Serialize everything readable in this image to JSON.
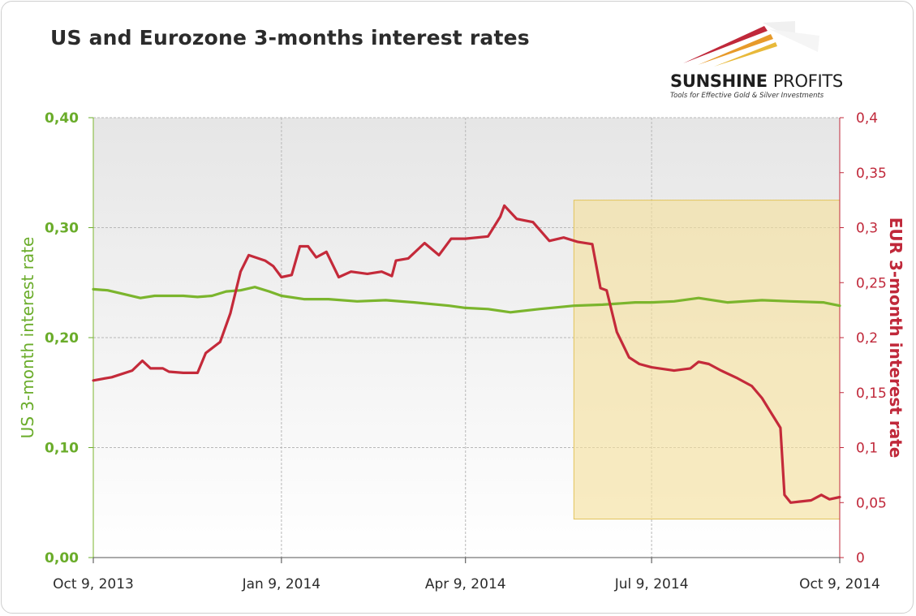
{
  "chart_data": {
    "type": "line",
    "title": "US and Eurozone 3-months interest rates",
    "x_ticks": [
      "Oct 9, 2013",
      "Jan 9, 2014",
      "Apr 9, 2014",
      "Jul 9, 2014",
      "Oct 9, 2014"
    ],
    "x_range": [
      "2013-10-09",
      "2014-10-09"
    ],
    "y_left": {
      "label": "US 3-month interest rate",
      "range": [
        0,
        0.4
      ],
      "ticks": [
        "0,00",
        "0,10",
        "0,20",
        "0,30",
        "0,40"
      ]
    },
    "y_right": {
      "label": "EUR 3-month interest rate",
      "range": [
        0,
        0.4
      ],
      "ticks": [
        "0",
        "0,05",
        "0,1",
        "0,15",
        "0,2",
        "0,25",
        "0,3",
        "0,35",
        "0,4"
      ]
    },
    "grid": true,
    "series": [
      {
        "axis": "left",
        "color": "#7bb52d",
        "points": [
          [
            "2013-10-09",
            0.244
          ],
          [
            "2013-10-16",
            0.243
          ],
          [
            "2013-10-23",
            0.24
          ],
          [
            "2013-11-01",
            0.236
          ],
          [
            "2013-11-08",
            0.238
          ],
          [
            "2013-11-15",
            0.238
          ],
          [
            "2013-11-22",
            0.238
          ],
          [
            "2013-11-29",
            0.237
          ],
          [
            "2013-12-06",
            0.238
          ],
          [
            "2013-12-13",
            0.242
          ],
          [
            "2013-12-20",
            0.243
          ],
          [
            "2013-12-27",
            0.246
          ],
          [
            "2014-01-03",
            0.242
          ],
          [
            "2014-01-09",
            0.238
          ],
          [
            "2014-01-20",
            0.235
          ],
          [
            "2014-02-01",
            0.235
          ],
          [
            "2014-02-15",
            0.233
          ],
          [
            "2014-03-01",
            0.234
          ],
          [
            "2014-03-15",
            0.232
          ],
          [
            "2014-04-01",
            0.229
          ],
          [
            "2014-04-09",
            0.227
          ],
          [
            "2014-04-20",
            0.226
          ],
          [
            "2014-05-01",
            0.223
          ],
          [
            "2014-05-15",
            0.226
          ],
          [
            "2014-06-01",
            0.229
          ],
          [
            "2014-06-15",
            0.23
          ],
          [
            "2014-07-01",
            0.232
          ],
          [
            "2014-07-09",
            0.232
          ],
          [
            "2014-07-20",
            0.233
          ],
          [
            "2014-08-01",
            0.236
          ],
          [
            "2014-08-15",
            0.232
          ],
          [
            "2014-09-01",
            0.234
          ],
          [
            "2014-09-15",
            0.233
          ],
          [
            "2014-10-01",
            0.232
          ],
          [
            "2014-10-09",
            0.229
          ]
        ]
      },
      {
        "axis": "right",
        "color": "#c42a3a",
        "points": [
          [
            "2013-10-09",
            0.161
          ],
          [
            "2013-10-18",
            0.164
          ],
          [
            "2013-10-28",
            0.17
          ],
          [
            "2013-11-02",
            0.179
          ],
          [
            "2013-11-06",
            0.172
          ],
          [
            "2013-11-12",
            0.172
          ],
          [
            "2013-11-15",
            0.169
          ],
          [
            "2013-11-22",
            0.168
          ],
          [
            "2013-11-29",
            0.168
          ],
          [
            "2013-12-03",
            0.186
          ],
          [
            "2013-12-10",
            0.196
          ],
          [
            "2013-12-15",
            0.222
          ],
          [
            "2013-12-20",
            0.26
          ],
          [
            "2013-12-24",
            0.275
          ],
          [
            "2014-01-01",
            0.27
          ],
          [
            "2014-01-05",
            0.265
          ],
          [
            "2014-01-09",
            0.255
          ],
          [
            "2014-01-14",
            0.257
          ],
          [
            "2014-01-18",
            0.283
          ],
          [
            "2014-01-22",
            0.283
          ],
          [
            "2014-01-26",
            0.273
          ],
          [
            "2014-01-31",
            0.278
          ],
          [
            "2014-02-06",
            0.255
          ],
          [
            "2014-02-12",
            0.26
          ],
          [
            "2014-02-20",
            0.258
          ],
          [
            "2014-02-27",
            0.26
          ],
          [
            "2014-03-04",
            0.256
          ],
          [
            "2014-03-06",
            0.27
          ],
          [
            "2014-03-12",
            0.272
          ],
          [
            "2014-03-20",
            0.286
          ],
          [
            "2014-03-27",
            0.275
          ],
          [
            "2014-04-02",
            0.29
          ],
          [
            "2014-04-09",
            0.29
          ],
          [
            "2014-04-20",
            0.292
          ],
          [
            "2014-04-26",
            0.31
          ],
          [
            "2014-04-28",
            0.32
          ],
          [
            "2014-05-04",
            0.308
          ],
          [
            "2014-05-12",
            0.305
          ],
          [
            "2014-05-20",
            0.288
          ],
          [
            "2014-05-27",
            0.291
          ],
          [
            "2014-06-03",
            0.287
          ],
          [
            "2014-06-10",
            0.285
          ],
          [
            "2014-06-14",
            0.245
          ],
          [
            "2014-06-17",
            0.243
          ],
          [
            "2014-06-22",
            0.205
          ],
          [
            "2014-06-28",
            0.182
          ],
          [
            "2014-07-03",
            0.176
          ],
          [
            "2014-07-09",
            0.173
          ],
          [
            "2014-07-20",
            0.17
          ],
          [
            "2014-07-28",
            0.172
          ],
          [
            "2014-08-01",
            0.178
          ],
          [
            "2014-08-06",
            0.176
          ],
          [
            "2014-08-12",
            0.17
          ],
          [
            "2014-08-20",
            0.163
          ],
          [
            "2014-08-27",
            0.156
          ],
          [
            "2014-09-01",
            0.145
          ],
          [
            "2014-09-06",
            0.13
          ],
          [
            "2014-09-10",
            0.118
          ],
          [
            "2014-09-12",
            0.057
          ],
          [
            "2014-09-15",
            0.05
          ],
          [
            "2014-09-20",
            0.051
          ],
          [
            "2014-09-25",
            0.052
          ],
          [
            "2014-09-30",
            0.057
          ],
          [
            "2014-10-04",
            0.053
          ],
          [
            "2014-10-09",
            0.055
          ]
        ]
      }
    ],
    "highlight": {
      "x_range": [
        "2014-06-01",
        "2014-10-09"
      ],
      "y_range_left": [
        0.035,
        0.325
      ],
      "color": "#f5df9a"
    }
  },
  "logo": {
    "name_bold": "SUNSHINE",
    "name_thin": "PROFITS",
    "tagline": "Tools for Effective Gold & Silver Investments"
  },
  "colors": {
    "us_series": "#7bb52d",
    "eur_series": "#c42a3a",
    "left_axis_text": "#6aac2a",
    "right_axis_text": "#c0283a",
    "highlight_fill": "#f5df9a"
  }
}
